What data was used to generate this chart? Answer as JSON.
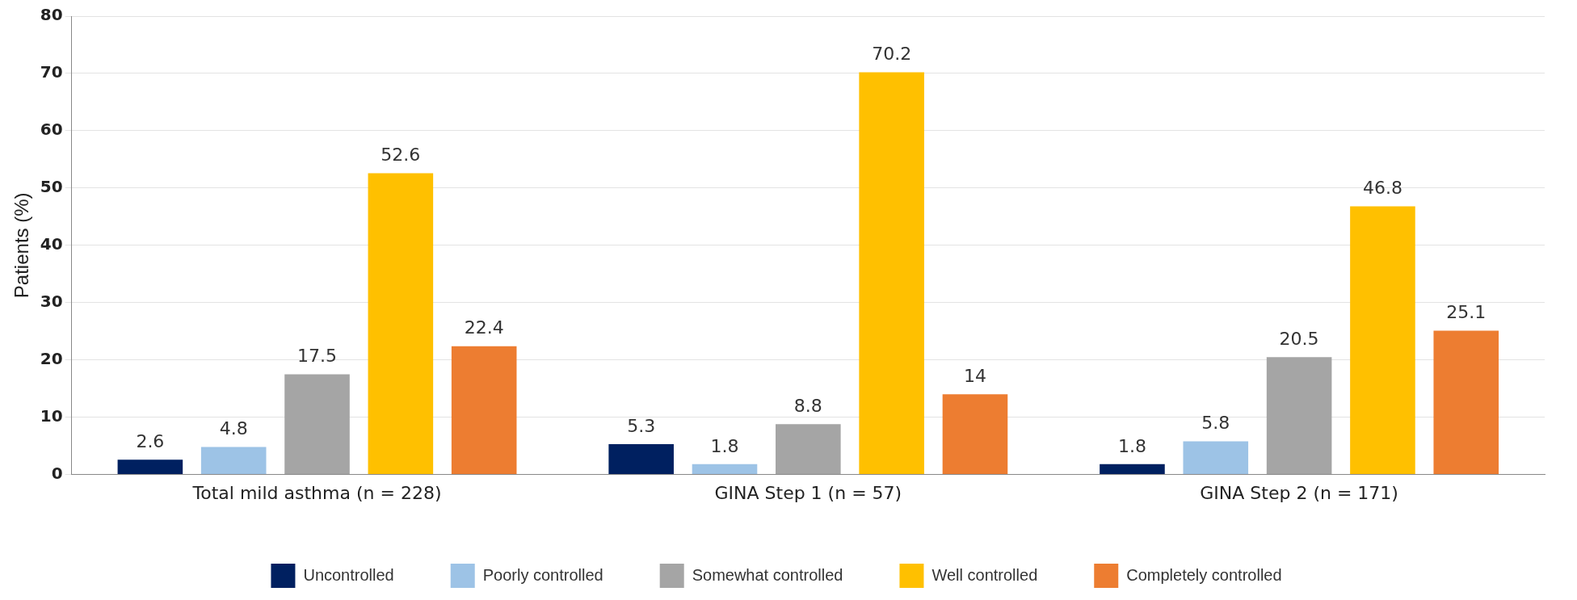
{
  "chart_data": {
    "type": "bar",
    "ylabel": "Patients (%)",
    "categories": [
      "Total mild asthma (n = 228)",
      "GINA Step 1 (n = 57)",
      "GINA Step 2 (n = 171)"
    ],
    "series": [
      {
        "name": "Uncontrolled",
        "color": "#002060",
        "values": [
          2.6,
          5.3,
          1.8
        ]
      },
      {
        "name": "Poorly controlled",
        "color": "#9dc3e6",
        "values": [
          4.8,
          1.8,
          5.8
        ]
      },
      {
        "name": "Somewhat controlled",
        "color": "#a5a5a5",
        "values": [
          17.5,
          8.8,
          20.5
        ]
      },
      {
        "name": "Well controlled",
        "color": "#ffc000",
        "values": [
          52.6,
          70.2,
          46.8
        ]
      },
      {
        "name": "Completely controlled",
        "color": "#ed7d31",
        "values": [
          22.4,
          14,
          25.1
        ]
      }
    ],
    "ylim": [
      0,
      80
    ],
    "yticks": [
      0,
      10,
      20,
      30,
      40,
      50,
      60,
      70,
      80
    ],
    "grid": "y",
    "legend": "bottom",
    "data_labels": true
  }
}
